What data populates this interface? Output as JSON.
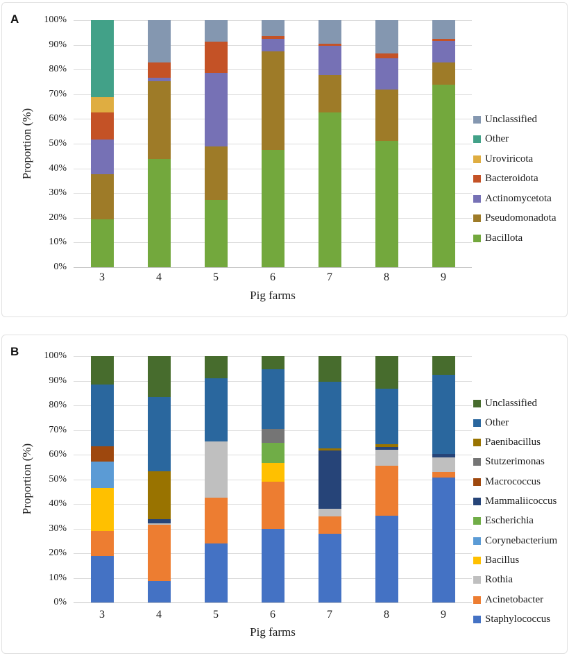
{
  "figure": {
    "panels": [
      {
        "label": "A"
      },
      {
        "label": "B"
      }
    ]
  },
  "chart_data": [
    {
      "type": "bar",
      "subtype": "stacked-100-percent",
      "panel_label": "A",
      "title": "",
      "xlabel": "Pig farms",
      "ylabel": "Proportion (%)",
      "ylim": [
        0,
        100
      ],
      "grid": true,
      "legend_position": "right",
      "ytick_labels": [
        "0%",
        "10%",
        "20%",
        "30%",
        "40%",
        "50%",
        "60%",
        "70%",
        "80%",
        "90%",
        "100%"
      ],
      "categories": [
        "3",
        "4",
        "5",
        "6",
        "7",
        "8",
        "9"
      ],
      "series": [
        {
          "name": "Bacillota",
          "color": "#73A83D",
          "values": [
            19.4,
            43.8,
            27.2,
            47.5,
            62.7,
            51.0,
            74.0
          ]
        },
        {
          "name": "Pseudomonadota",
          "color": "#9E7B28",
          "values": [
            18.3,
            31.4,
            21.7,
            40.0,
            15.1,
            20.9,
            8.9
          ]
        },
        {
          "name": "Actinomycetota",
          "color": "#7671B5",
          "values": [
            14.0,
            1.4,
            29.8,
            5.0,
            11.9,
            12.8,
            8.7
          ]
        },
        {
          "name": "Bacteroidota",
          "color": "#C45226",
          "values": [
            11.0,
            6.4,
            12.6,
            1.0,
            0.9,
            1.9,
            0.7
          ]
        },
        {
          "name": "Uroviricota",
          "color": "#DFAD41",
          "values": [
            6.1,
            0,
            0,
            0,
            0,
            0,
            0
          ]
        },
        {
          "name": "Other",
          "color": "#42A188",
          "values": [
            31.2,
            0,
            0,
            0,
            0,
            0,
            0
          ]
        },
        {
          "name": "Unclassified",
          "color": "#8497B0",
          "values": [
            0,
            17.0,
            8.7,
            6.5,
            9.4,
            13.4,
            7.7
          ]
        }
      ],
      "legend": [
        "Unclassified",
        "Other",
        "Uroviricota",
        "Bacteroidota",
        "Actinomycetota",
        "Pseudomonadota",
        "Bacillota"
      ]
    },
    {
      "type": "bar",
      "subtype": "stacked-100-percent",
      "panel_label": "B",
      "title": "",
      "xlabel": "Pig farms",
      "ylabel": "Proportion (%)",
      "ylim": [
        0,
        100
      ],
      "grid": true,
      "legend_position": "right",
      "ytick_labels": [
        "0%",
        "10%",
        "20%",
        "30%",
        "40%",
        "50%",
        "60%",
        "70%",
        "80%",
        "90%",
        "100%"
      ],
      "categories": [
        "3",
        "4",
        "5",
        "6",
        "7",
        "8",
        "9"
      ],
      "series": [
        {
          "name": "Staphylococcus",
          "color": "#4472C4",
          "values": [
            18.9,
            8.7,
            24.0,
            30.0,
            27.8,
            35.2,
            50.7
          ]
        },
        {
          "name": "Acinetobacter",
          "color": "#ED7D31",
          "values": [
            10.0,
            22.8,
            18.5,
            18.9,
            7.0,
            20.3,
            2.3
          ]
        },
        {
          "name": "Rothia",
          "color": "#BFBFBF",
          "values": [
            0,
            0.6,
            23.0,
            0,
            3.3,
            6.4,
            6.0
          ]
        },
        {
          "name": "Bacillus",
          "color": "#FFC000",
          "values": [
            17.6,
            0,
            0,
            7.7,
            0,
            0,
            0
          ]
        },
        {
          "name": "Corynebacterium",
          "color": "#5B9BD5",
          "values": [
            10.6,
            0,
            0,
            0,
            0,
            0,
            0
          ]
        },
        {
          "name": "Escherichia",
          "color": "#70AD47",
          "values": [
            0,
            0,
            0,
            8.2,
            0,
            0,
            0
          ]
        },
        {
          "name": "Mammaliicoccus",
          "color": "#264478",
          "values": [
            0,
            1.7,
            0,
            0,
            23.5,
            1.2,
            1.2
          ]
        },
        {
          "name": "Macrococcus",
          "color": "#9E480E",
          "values": [
            6.3,
            0,
            0,
            0,
            0,
            0,
            0
          ]
        },
        {
          "name": "Stutzerimonas",
          "color": "#757575",
          "values": [
            0,
            0,
            0,
            5.5,
            0,
            0,
            0
          ]
        },
        {
          "name": "Paenibacillus",
          "color": "#997300",
          "values": [
            0,
            19.5,
            0,
            0,
            1.0,
            1.1,
            0
          ]
        },
        {
          "name": "Other",
          "color": "#2A679E",
          "values": [
            25.1,
            30.1,
            25.5,
            24.4,
            27.0,
            22.5,
            32.1
          ]
        },
        {
          "name": "Unclassified",
          "color": "#476C2D",
          "values": [
            11.5,
            16.6,
            9.0,
            5.3,
            10.4,
            13.3,
            7.7
          ]
        }
      ],
      "legend": [
        "Unclassified",
        "Other",
        "Paenibacillus",
        "Stutzerimonas",
        "Macrococcus",
        "Mammaliicoccus",
        "Escherichia",
        "Corynebacterium",
        "Bacillus",
        "Rothia",
        "Acinetobacter",
        "Staphylococcus"
      ]
    }
  ]
}
